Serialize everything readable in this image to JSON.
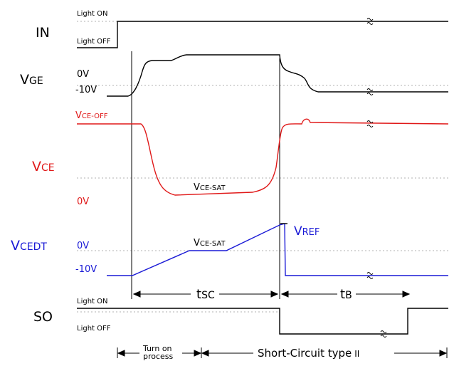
{
  "signals": {
    "in": {
      "main": "IN",
      "sub": ""
    },
    "vge": {
      "main": "V",
      "sub": "GE"
    },
    "vce": {
      "main": "V",
      "sub": "CE"
    },
    "vcedt": {
      "main": "V",
      "sub": "CEDT"
    },
    "so": {
      "main": "SO",
      "sub": ""
    }
  },
  "levels": {
    "light_on": "Light ON",
    "light_off": "Light OFF",
    "zero_v": "0V",
    "minus_10v": "-10V",
    "vce_off_main": "V",
    "vce_off_sub": "CE-OFF",
    "vce_sat_main": "V",
    "vce_sat_sub": "CE-SAT",
    "vref_main": "V",
    "vref_sub": "REF"
  },
  "intervals": {
    "tsc_main": "t",
    "tsc_sub": "SC",
    "tb_main": "t",
    "tb_sub": "B"
  },
  "phases": {
    "turn_on_line1": "Turn on",
    "turn_on_line2": "process",
    "short_circuit": "Short-Circuit type",
    "short_circuit_roman": "II"
  },
  "colors": {
    "black": "#000000",
    "red": "#e01818",
    "blue": "#1a1ad6",
    "dotted": "#b0b0b0"
  }
}
